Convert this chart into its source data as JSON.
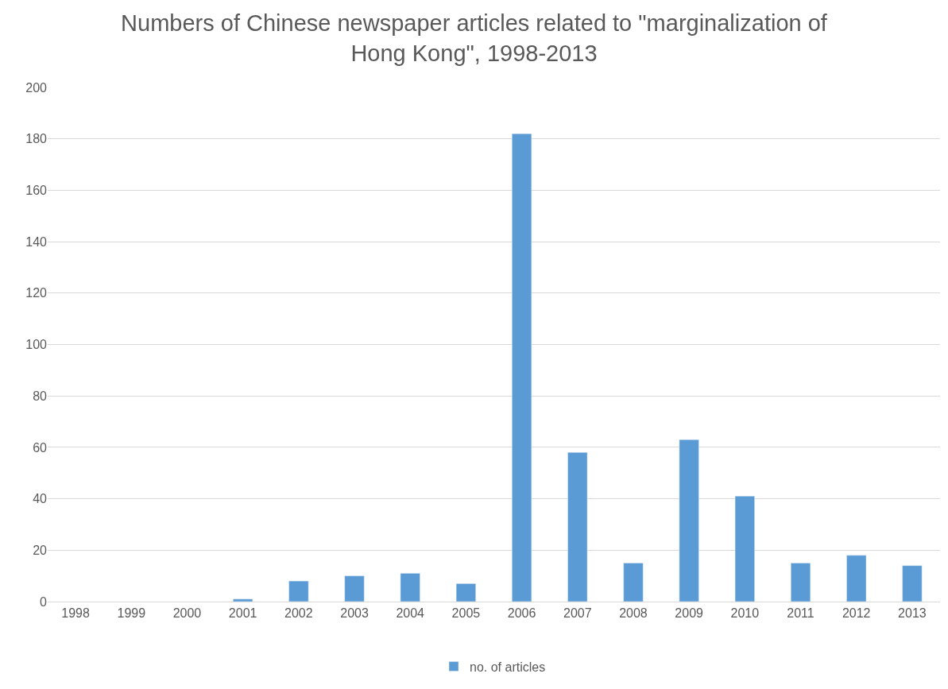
{
  "chart_data": {
    "type": "bar",
    "title": "Numbers of Chinese newspaper articles related to \"marginalization of Hong Kong\", 1998-2013",
    "categories": [
      "1998",
      "1999",
      "2000",
      "2001",
      "2002",
      "2003",
      "2004",
      "2005",
      "2006",
      "2007",
      "2008",
      "2009",
      "2010",
      "2011",
      "2012",
      "2013"
    ],
    "series": [
      {
        "name": "no. of articles",
        "color": "#5b9bd5",
        "values": [
          null,
          null,
          null,
          1,
          8,
          10,
          11,
          7,
          182,
          58,
          15,
          63,
          41,
          15,
          18,
          14
        ]
      }
    ],
    "ylim": [
      0,
      200
    ],
    "yticks": [
      0,
      20,
      40,
      60,
      80,
      100,
      120,
      140,
      160,
      180,
      200
    ],
    "grid": "y",
    "legend": "bottom"
  }
}
